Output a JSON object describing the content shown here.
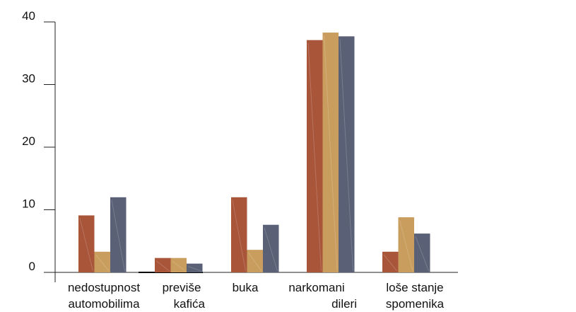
{
  "chart_data": {
    "type": "bar",
    "title": "",
    "xlabel": "",
    "ylabel": "",
    "ylim": [
      0,
      40
    ],
    "yticks": [
      "0",
      "10",
      "20",
      "30",
      "40"
    ],
    "grid": false,
    "legend": "none",
    "categories": [
      [
        "nedostupnost",
        "automobilima"
      ],
      [
        "previše",
        "kafića"
      ],
      [
        "buka"
      ],
      [
        "narkomani",
        "dileri"
      ],
      [
        "loše stanje",
        "spomenika"
      ]
    ],
    "series": [
      {
        "color": "#a9553a",
        "values": [
          9.1,
          2.3,
          12.0,
          37.1,
          3.3
        ]
      },
      {
        "color": "#c99d5d",
        "values": [
          3.3,
          2.3,
          3.6,
          38.3,
          8.8
        ]
      },
      {
        "color": "#5a6076",
        "values": [
          12.0,
          1.4,
          7.6,
          37.7,
          6.2
        ]
      }
    ]
  }
}
